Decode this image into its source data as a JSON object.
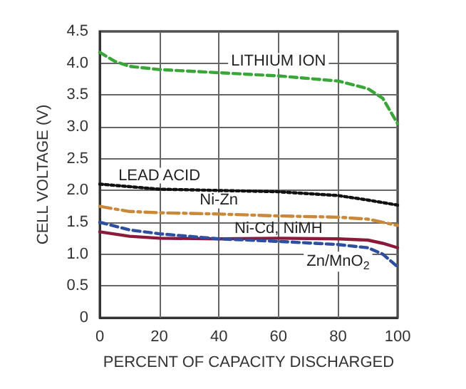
{
  "chart_data": {
    "type": "line",
    "xlabel": "PERCENT OF CAPACITY DISCHARGED",
    "ylabel": "CELL VOLTAGE (V)",
    "xlim": [
      0,
      100
    ],
    "xticks": [
      0,
      20,
      40,
      60,
      80,
      100
    ],
    "ylim": [
      0,
      4.5
    ],
    "yticks": [
      0,
      0.5,
      {
        "value": 1,
        "label": "1.0"
      },
      1.5,
      {
        "value": 2,
        "label": "2.0"
      },
      2.5,
      {
        "value": 3,
        "label": "3.0"
      },
      3.5,
      {
        "value": 4,
        "label": "4.0"
      },
      4.5
    ],
    "grid": true,
    "legend": false,
    "marker": "none",
    "series": [
      {
        "name": "LITHIUM ION",
        "color": "#3aa63a",
        "line_style": "dashed",
        "x": [
          0,
          5,
          10,
          20,
          40,
          60,
          80,
          90,
          95,
          100
        ],
        "values": [
          4.17,
          4.03,
          3.95,
          3.9,
          3.85,
          3.8,
          3.72,
          3.6,
          3.45,
          3.05
        ]
      },
      {
        "name": "LEAD ACID",
        "color": "#111111",
        "line_style": "dotted",
        "x": [
          0,
          20,
          40,
          60,
          80,
          90,
          100
        ],
        "values": [
          2.1,
          2.02,
          2.0,
          1.98,
          1.92,
          1.85,
          1.77
        ]
      },
      {
        "name": "Ni-Zn",
        "color": "#c8893a",
        "line_style": "dashdot",
        "x": [
          0,
          10,
          20,
          40,
          60,
          80,
          90,
          100
        ],
        "values": [
          1.75,
          1.67,
          1.65,
          1.63,
          1.6,
          1.58,
          1.55,
          1.45
        ]
      },
      {
        "name": "Ni-Cd, NiMH",
        "color": "#8b1a3a",
        "line_style": "solid",
        "x": [
          0,
          10,
          20,
          40,
          60,
          80,
          90,
          95,
          100
        ],
        "values": [
          1.35,
          1.28,
          1.25,
          1.24,
          1.25,
          1.24,
          1.22,
          1.17,
          1.1
        ]
      },
      {
        "name": "Zn/MnO$_{2}$",
        "color": "#2e4fa0",
        "line_style": "dashed",
        "x": [
          0,
          10,
          20,
          40,
          60,
          80,
          90,
          95,
          100
        ],
        "values": [
          1.5,
          1.38,
          1.32,
          1.24,
          1.2,
          1.15,
          1.1,
          1.0,
          0.8
        ]
      }
    ]
  }
}
